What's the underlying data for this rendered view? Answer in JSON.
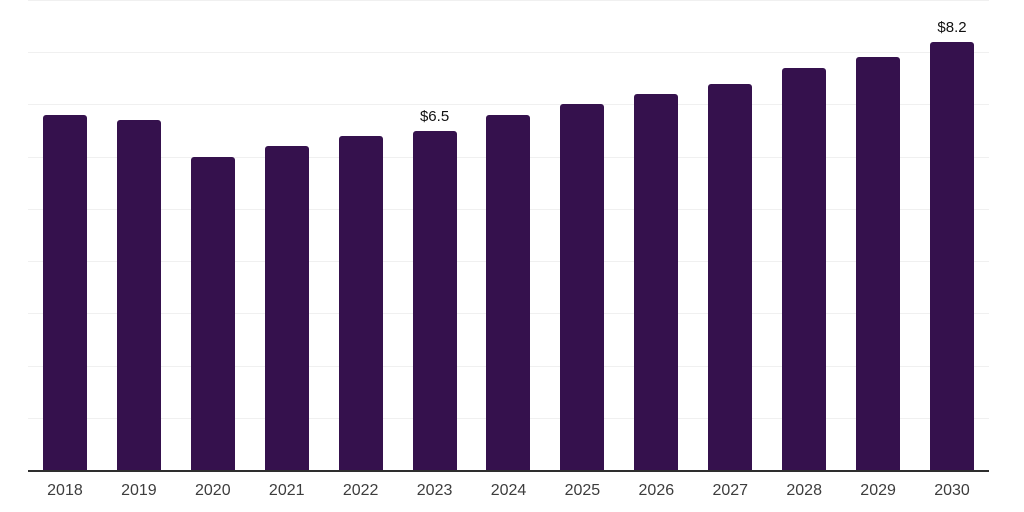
{
  "chart_data": {
    "type": "bar",
    "title": "",
    "xlabel": "",
    "ylabel": "",
    "categories": [
      "2018",
      "2019",
      "2020",
      "2021",
      "2022",
      "2023",
      "2024",
      "2025",
      "2026",
      "2027",
      "2028",
      "2029",
      "2030"
    ],
    "values": [
      6.8,
      6.7,
      6.0,
      6.2,
      6.4,
      6.5,
      6.8,
      7.0,
      7.2,
      7.4,
      7.7,
      7.9,
      8.2
    ],
    "value_labels": [
      "",
      "",
      "",
      "",
      "",
      "$6.5",
      "",
      "",
      "",
      "",
      "",
      "",
      "$8.2"
    ],
    "ylim": [
      0,
      9
    ],
    "gridline_step": 1,
    "grid": "horizontal",
    "legend": "none",
    "colors": {
      "bar": "#35114d",
      "background": "#ffffff",
      "gridline": "#f0f0f0",
      "axis_line": "#2e2e2e",
      "tick_label": "#3d3d3d",
      "value_label": "#111111"
    }
  }
}
